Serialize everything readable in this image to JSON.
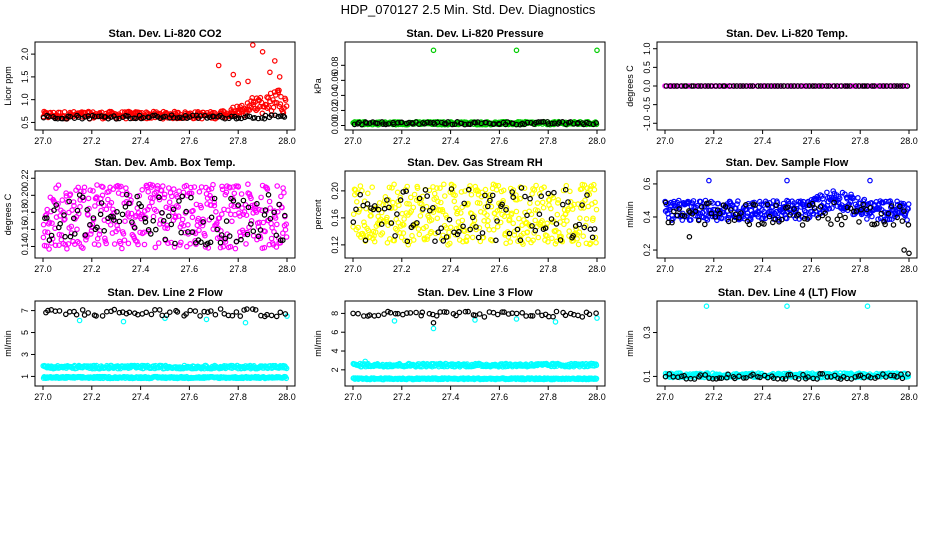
{
  "title": "HDP_070127  2.5 Min. Std. Dev. Diagnostics",
  "colors": {
    "black": "#000000",
    "red": "#ff0000",
    "green": "#00cc00",
    "magenta": "#ff00ff",
    "yellow": "#ffff00",
    "blue": "#0000ff",
    "cyan": "#00ffff"
  },
  "chart_data": [
    {
      "type": "scatter",
      "title": "Stan. Dev. Li-820 CO2",
      "ylabel": "Licor ppm",
      "xlim": [
        27.0,
        28.0
      ],
      "ylim": [
        0.4,
        2.2
      ],
      "xticks": [
        "27.0",
        "27.2",
        "27.4",
        "27.6",
        "27.8",
        "28.0"
      ],
      "yticks": [
        "0.5",
        "1.0",
        "1.5",
        "2.0"
      ],
      "series": [
        {
          "name": "red",
          "color": "red",
          "base": 0.66,
          "spread": 0.08,
          "count": 320,
          "rise_after": 27.72,
          "rise_to": 1.3,
          "outliers": [
            [
              27.72,
              1.75
            ],
            [
              27.78,
              1.55
            ],
            [
              27.86,
              2.2
            ],
            [
              27.9,
              2.05
            ],
            [
              27.93,
              1.6
            ],
            [
              27.95,
              1.85
            ],
            [
              27.97,
              1.5
            ],
            [
              27.8,
              1.35
            ],
            [
              27.84,
              1.4
            ]
          ]
        },
        {
          "name": "black",
          "color": "black",
          "base": 0.62,
          "spread": 0.04,
          "count": 90,
          "outliers": []
        }
      ]
    },
    {
      "type": "scatter",
      "title": "Stan. Dev. Li-820 Pressure",
      "ylabel": "kPa",
      "xlim": [
        27.0,
        28.0
      ],
      "ylim": [
        -0.002,
        0.107
      ],
      "xticks": [
        "27.0",
        "27.2",
        "27.4",
        "27.6",
        "27.8",
        "28.0"
      ],
      "yticks": [
        "0.00",
        "0.02",
        "0.04",
        "0.06",
        "0.08"
      ],
      "series": [
        {
          "name": "green",
          "color": "green",
          "base": 0.003,
          "spread": 0.002,
          "count": 320,
          "outliers": [
            [
              27.33,
              0.1
            ],
            [
              27.67,
              0.1
            ],
            [
              28.0,
              0.1
            ]
          ]
        },
        {
          "name": "black",
          "color": "black",
          "base": 0.003,
          "spread": 0.002,
          "count": 90,
          "outliers": []
        }
      ]
    },
    {
      "type": "scatter",
      "title": "Stan. Dev. Li-820 Temp.",
      "ylabel": "degrees C",
      "xlim": [
        27.0,
        28.0
      ],
      "ylim": [
        -1.1,
        1.1
      ],
      "xticks": [
        "27.0",
        "27.2",
        "27.4",
        "27.6",
        "27.8",
        "28.0"
      ],
      "yticks": [
        "-1.0",
        "-0.5",
        "0.0",
        "0.5",
        "1.0"
      ],
      "series": [
        {
          "name": "magenta",
          "color": "magenta",
          "base": 0.0,
          "spread": 0.0,
          "count": 100,
          "outliers": []
        },
        {
          "name": "black",
          "color": "black",
          "base": 0.0,
          "spread": 0.0,
          "count": 70,
          "outliers": []
        }
      ]
    },
    {
      "type": "scatter",
      "title": "Stan. Dev. Amb. Box Temp.",
      "ylabel": "degrees C",
      "xlim": [
        27.0,
        28.0
      ],
      "ylim": [
        0.13,
        0.225
      ],
      "xticks": [
        "27.0",
        "27.2",
        "27.4",
        "27.6",
        "27.8",
        "28.0"
      ],
      "yticks": [
        "0.14",
        "0.16",
        "0.18",
        "0.20",
        "0.22"
      ],
      "series": [
        {
          "name": "magenta",
          "color": "magenta",
          "base": 0.175,
          "spread": 0.038,
          "count": 420,
          "outliers": []
        },
        {
          "name": "black",
          "color": "black",
          "base": 0.172,
          "spread": 0.03,
          "count": 100,
          "outliers": []
        }
      ]
    },
    {
      "type": "scatter",
      "title": "Stan. Dev. Gas Stream RH",
      "ylabel": "percent",
      "xlim": [
        27.0,
        28.0
      ],
      "ylim": [
        0.105,
        0.225
      ],
      "xticks": [
        "27.0",
        "27.2",
        "27.4",
        "27.6",
        "27.8",
        "28.0"
      ],
      "yticks": [
        "0.12",
        "0.16",
        "0.20"
      ],
      "series": [
        {
          "name": "yellow",
          "color": "yellow",
          "base": 0.165,
          "spread": 0.045,
          "count": 420,
          "outliers": []
        },
        {
          "name": "black",
          "color": "black",
          "base": 0.165,
          "spread": 0.04,
          "count": 90,
          "outliers": []
        }
      ]
    },
    {
      "type": "scatter",
      "title": "Stan. Dev. Sample Flow",
      "ylabel": "ml/min",
      "xlim": [
        27.0,
        28.0
      ],
      "ylim": [
        0.17,
        0.66
      ],
      "xticks": [
        "27.0",
        "27.2",
        "27.4",
        "27.6",
        "27.8",
        "28.0"
      ],
      "yticks": [
        "0.2",
        "0.4",
        "0.6"
      ],
      "series": [
        {
          "name": "blue",
          "color": "blue",
          "base": 0.44,
          "spread": 0.06,
          "count": 420,
          "bump_at": 27.7,
          "bump": 0.07,
          "outliers": [
            [
              27.18,
              0.62
            ],
            [
              27.5,
              0.62
            ],
            [
              27.84,
              0.62
            ]
          ]
        },
        {
          "name": "black",
          "color": "black",
          "base": 0.42,
          "spread": 0.07,
          "count": 90,
          "outliers": [
            [
              27.1,
              0.28
            ],
            [
              27.98,
              0.2
            ],
            [
              28.0,
              0.18
            ]
          ]
        }
      ]
    },
    {
      "type": "scatter",
      "title": "Stan. Dev. Line 2 Flow",
      "ylabel": "ml/min",
      "xlim": [
        27.0,
        28.0
      ],
      "ylim": [
        0.4,
        7.6
      ],
      "xticks": [
        "27.0",
        "27.2",
        "27.4",
        "27.6",
        "27.8",
        "28.0"
      ],
      "yticks": [
        "1",
        "3",
        "5",
        "7"
      ],
      "series": [
        {
          "name": "cyan-upper",
          "color": "cyan",
          "base": 1.85,
          "spread": 0.15,
          "count": 300,
          "outliers": [
            [
              27.15,
              6.1
            ],
            [
              27.33,
              6.0
            ],
            [
              27.5,
              6.3
            ],
            [
              27.67,
              6.2
            ],
            [
              27.83,
              5.9
            ],
            [
              28.0,
              6.5
            ]
          ]
        },
        {
          "name": "cyan-lower",
          "color": "cyan",
          "base": 0.9,
          "spread": 0.08,
          "count": 300,
          "outliers": []
        },
        {
          "name": "black",
          "color": "black",
          "base": 6.8,
          "spread": 0.35,
          "count": 60,
          "outliers": []
        }
      ]
    },
    {
      "type": "scatter",
      "title": "Stan. Dev. Line 3 Flow",
      "ylabel": "ml/min",
      "xlim": [
        27.0,
        28.0
      ],
      "ylim": [
        0.6,
        9.0
      ],
      "xticks": [
        "27.0",
        "27.2",
        "27.4",
        "27.6",
        "27.8",
        "28.0"
      ],
      "yticks": [
        "2",
        "4",
        "6",
        "8"
      ],
      "series": [
        {
          "name": "cyan-upper",
          "color": "cyan",
          "base": 2.5,
          "spread": 0.18,
          "count": 300,
          "outliers": [
            [
              27.05,
              2.9
            ],
            [
              27.17,
              7.2
            ],
            [
              27.33,
              6.4
            ],
            [
              27.5,
              7.3
            ],
            [
              27.67,
              7.4
            ],
            [
              27.83,
              7.1
            ],
            [
              28.0,
              7.5
            ]
          ]
        },
        {
          "name": "cyan-lower",
          "color": "cyan",
          "base": 1.05,
          "spread": 0.08,
          "count": 300,
          "outliers": []
        },
        {
          "name": "black",
          "color": "black",
          "base": 7.9,
          "spread": 0.3,
          "count": 60,
          "outliers": [
            [
              27.33,
              7.0
            ]
          ]
        }
      ]
    },
    {
      "type": "scatter",
      "title": "Stan. Dev. Line 4 (LT) Flow",
      "ylabel": "ml/min",
      "xlim": [
        27.0,
        28.0
      ],
      "ylim": [
        0.07,
        0.43
      ],
      "xticks": [
        "27.0",
        "27.2",
        "27.4",
        "27.6",
        "27.8",
        "28.0"
      ],
      "yticks": [
        "0.1",
        "0.3"
      ],
      "series": [
        {
          "name": "cyan",
          "color": "cyan",
          "base": 0.105,
          "spread": 0.01,
          "count": 320,
          "outliers": [
            [
              27.17,
              0.42
            ],
            [
              27.5,
              0.42
            ],
            [
              27.83,
              0.42
            ]
          ]
        },
        {
          "name": "black",
          "color": "black",
          "base": 0.1,
          "spread": 0.012,
          "count": 70,
          "outliers": []
        }
      ]
    }
  ]
}
